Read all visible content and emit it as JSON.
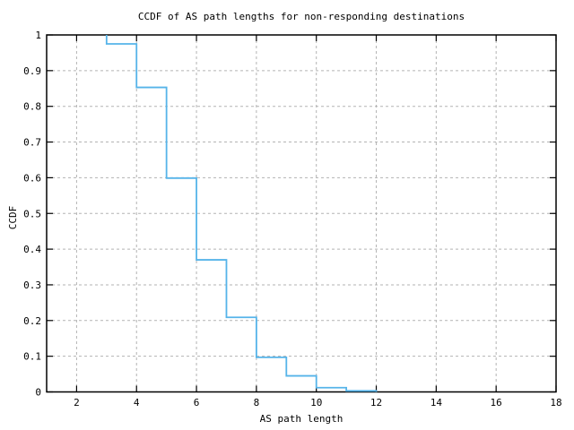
{
  "page": {
    "background_color": "#ffffff",
    "text_color": "#000000"
  },
  "chart_data": {
    "type": "line",
    "subtype": "step-ccdf",
    "title": "CCDF of AS path lengths for non-responding destinations",
    "xlabel": "AS path length",
    "ylabel": "CCDF",
    "xlim": [
      1,
      18
    ],
    "ylim": [
      0,
      1
    ],
    "grid": "dashed major, on",
    "legend_position": "none",
    "axis_color": "#000000",
    "grid_color": "#b3b3b3",
    "xticks": {
      "values": [
        2,
        4,
        6,
        8,
        10,
        12,
        14,
        16,
        18
      ],
      "labels": [
        "2",
        "4",
        "6",
        "8",
        "10",
        "12",
        "14",
        "16",
        "18"
      ]
    },
    "yticks": {
      "values": [
        0,
        0.1,
        0.2,
        0.3,
        0.4,
        0.5,
        0.6,
        0.7,
        0.8,
        0.9,
        1
      ],
      "labels": [
        "0",
        "0.1",
        "0.2",
        "0.3",
        "0.4",
        "0.5",
        "0.6",
        "0.7",
        "0.8",
        "0.9",
        "1"
      ]
    },
    "series": [
      {
        "name": "CCDF of AS path length",
        "color": "#56b4e9",
        "start": {
          "x": 3,
          "y": 1.0
        },
        "x": [
          3,
          4,
          5,
          6,
          7,
          8,
          9,
          10,
          11,
          12
        ],
        "y": [
          0.975,
          0.853,
          0.599,
          0.37,
          0.209,
          0.097,
          0.045,
          0.012,
          0.003,
          0.0
        ]
      }
    ]
  }
}
